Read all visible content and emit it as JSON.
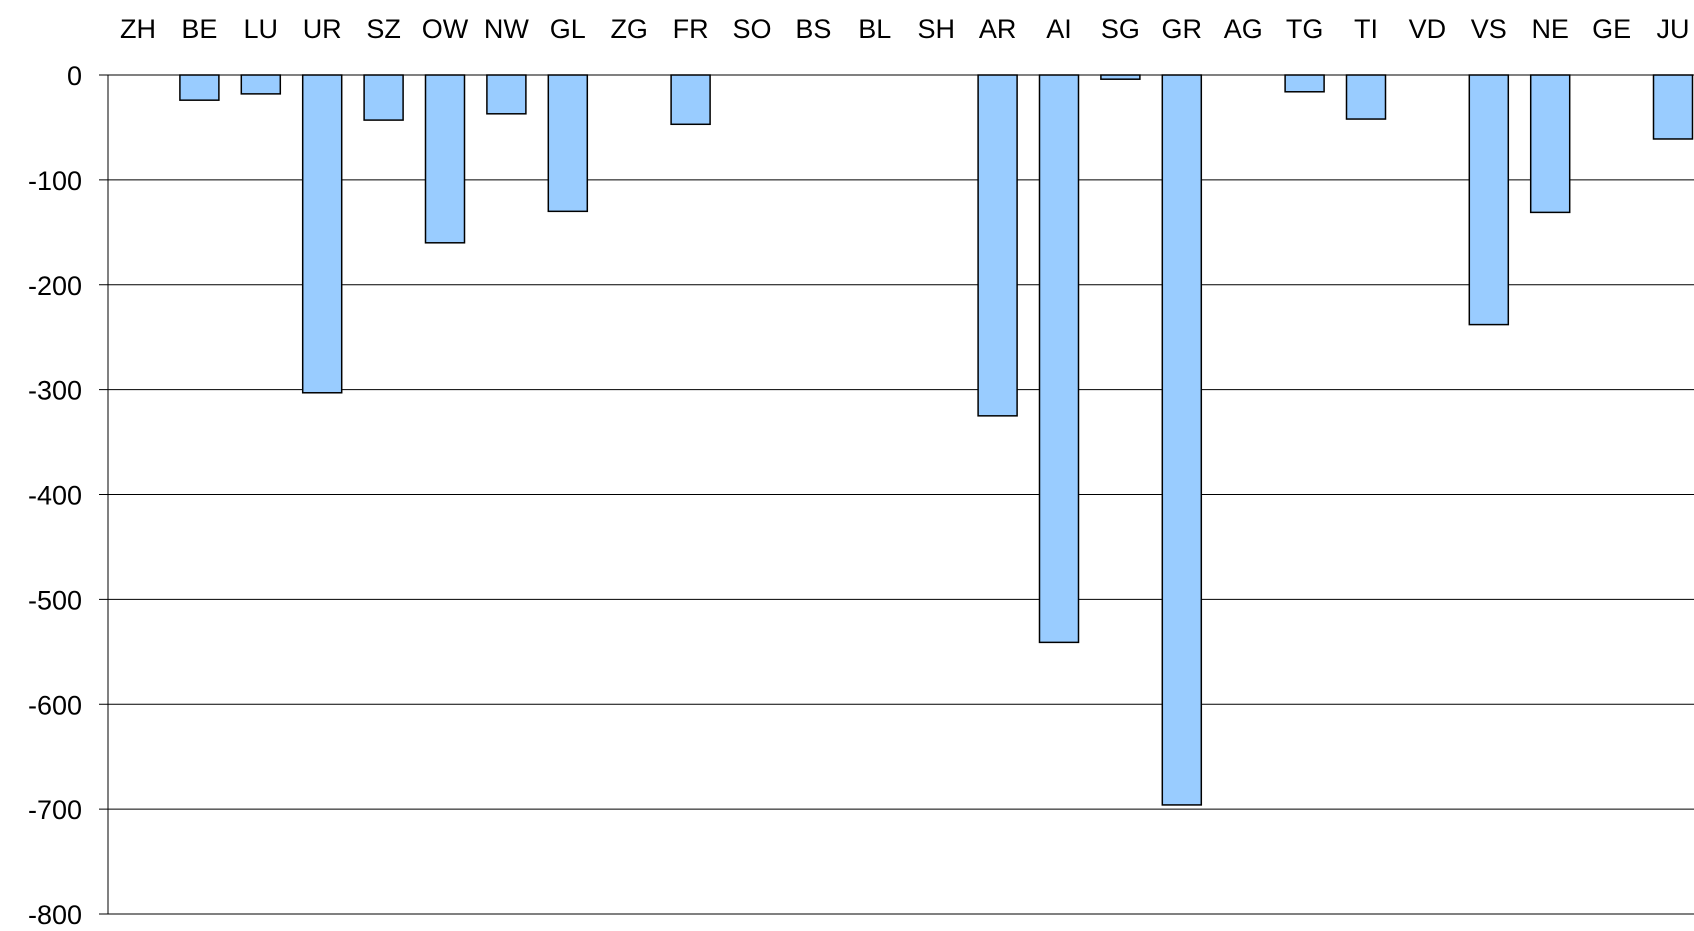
{
  "chart_data": {
    "type": "bar",
    "title": "",
    "xlabel": "",
    "ylabel": "",
    "categories": [
      "ZH",
      "BE",
      "LU",
      "UR",
      "SZ",
      "OW",
      "NW",
      "GL",
      "ZG",
      "FR",
      "SO",
      "BS",
      "BL",
      "SH",
      "AR",
      "AI",
      "SG",
      "GR",
      "AG",
      "TG",
      "TI",
      "VD",
      "VS",
      "NE",
      "GE",
      "JU"
    ],
    "values": [
      0,
      -24,
      -18,
      -303,
      -43,
      -160,
      -37,
      -130,
      0,
      -47,
      0,
      0,
      0,
      0,
      -325,
      -541,
      -4,
      -696,
      0,
      -16,
      -42,
      0,
      -238,
      -131,
      0,
      -61
    ],
    "ylim": [
      -800,
      0
    ],
    "yticks": [
      0,
      -100,
      -200,
      -300,
      -400,
      -500,
      -600,
      -700,
      -800
    ],
    "ytick_labels": [
      "0",
      "-100",
      "-200",
      "-300",
      "-400",
      "-500",
      "-600",
      "-700",
      "-800"
    ],
    "grid": true,
    "x_axis_position": "top",
    "colors": {
      "bar_fill": "#99CCFF",
      "bar_stroke": "#000000",
      "grid": "#000000",
      "axis": "#000000"
    }
  }
}
